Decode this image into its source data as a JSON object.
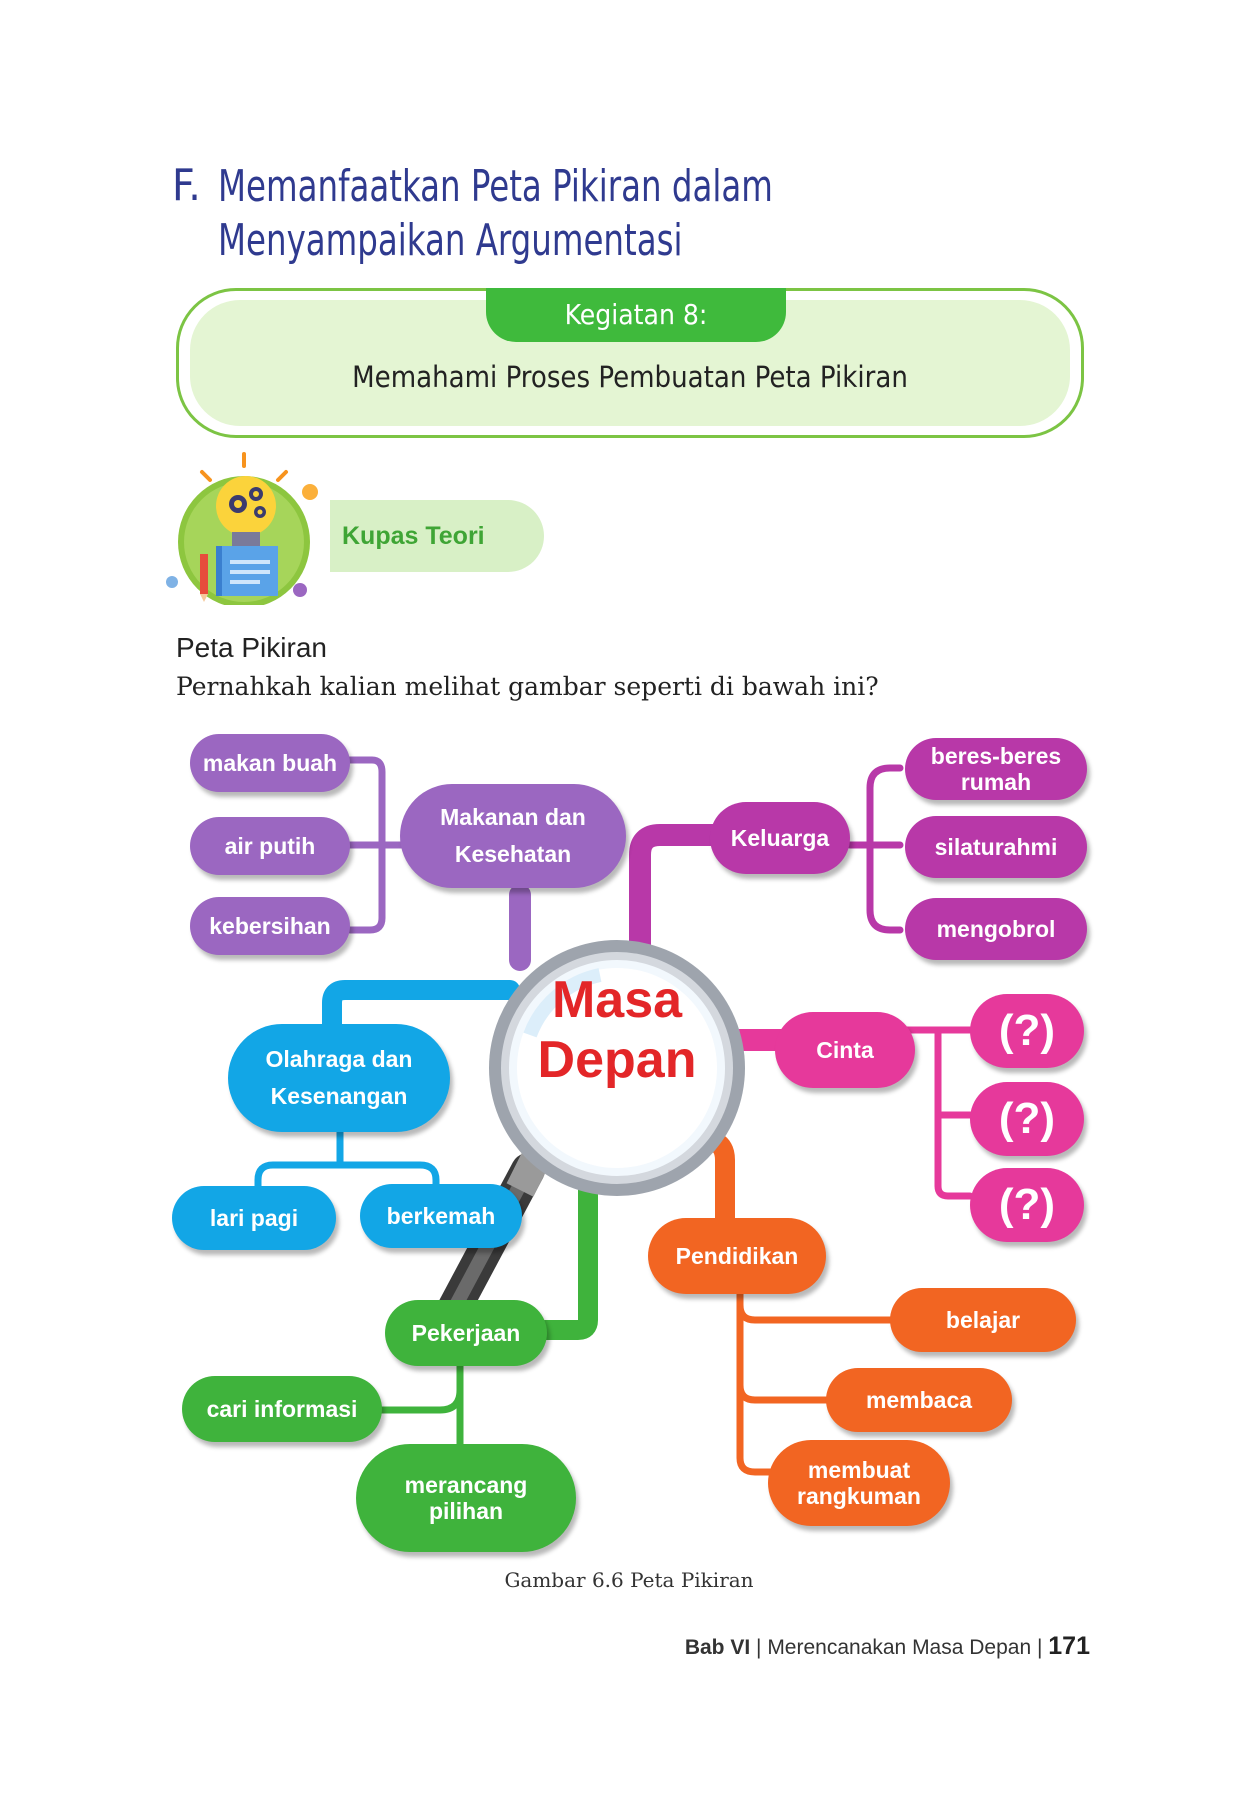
{
  "section": {
    "letter": "F.",
    "title": "Memanfaatkan Peta Pikiran dalam Menyampaikan Argumentasi"
  },
  "activity": {
    "tab": "Kegiatan 8:",
    "subtitle": "Memahami Proses Pembuatan Peta Pikiran"
  },
  "kupas": {
    "label": "Kupas Teori"
  },
  "peta": {
    "heading": "Peta Pikiran",
    "question": "Pernahkah kalian melihat gambar seperti di bawah ini?"
  },
  "mindmap": {
    "center": [
      "Masa",
      "Depan"
    ],
    "makanan": {
      "label": "Makanan dan Kesehatan",
      "children": [
        "makan buah",
        "air putih",
        "kebersihan"
      ]
    },
    "keluarga": {
      "label": "Keluarga",
      "children": [
        "beres-beres rumah",
        "silaturahmi",
        "mengobrol"
      ]
    },
    "olahraga": {
      "label": "Olahraga dan Kesenangan",
      "children": [
        "lari pagi",
        "berkemah"
      ]
    },
    "cinta": {
      "label": "Cinta",
      "children": [
        "(?)",
        "(?)",
        "(?)"
      ]
    },
    "pekerjaan": {
      "label": "Pekerjaan",
      "children": [
        "cari informasi",
        "merancang pilihan"
      ]
    },
    "pendidikan": {
      "label": "Pendidikan",
      "children": [
        "belajar",
        "membaca",
        "membuat rangkuman"
      ]
    },
    "colors": {
      "makanan": "#9b67c1",
      "keluarga": "#b838a8",
      "cinta": "#e6399b",
      "olahraga": "#12a6e6",
      "pendidikan": "#f26522",
      "pekerjaan": "#3fb33c",
      "center_text": "#e32628"
    }
  },
  "caption": "Gambar 6.6 Peta Pikiran",
  "footer": {
    "chapter": "Bab VI",
    "title": "Merencanakan Masa Depan",
    "page": "171"
  }
}
